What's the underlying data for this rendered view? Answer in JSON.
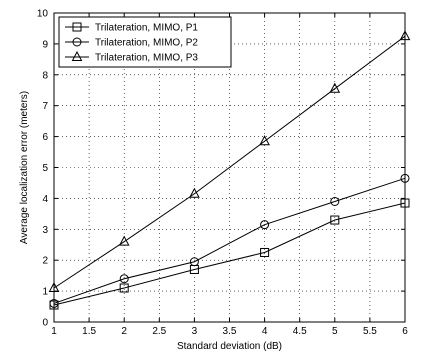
{
  "chart_data": {
    "type": "line",
    "xlabel": "Standard deviation (dB)",
    "ylabel": "Average localization error (meters)",
    "xlim": [
      1,
      6
    ],
    "ylim": [
      0,
      10
    ],
    "x_ticks": [
      "1",
      "1.5",
      "2",
      "2.5",
      "3",
      "3.5",
      "4",
      "4.5",
      "5",
      "5.5",
      "6"
    ],
    "y_ticks": [
      "0",
      "1",
      "2",
      "3",
      "4",
      "5",
      "6",
      "7",
      "8",
      "9",
      "10"
    ],
    "grid": true,
    "legend_position": "top-left",
    "x": [
      1,
      2,
      3,
      4,
      5,
      6
    ],
    "series": [
      {
        "name": "Trilateration, MIMO, P1",
        "marker": "square",
        "values": [
          0.55,
          1.1,
          1.7,
          2.25,
          3.3,
          3.85
        ]
      },
      {
        "name": "Trilateration, MIMO, P2",
        "marker": "circle",
        "values": [
          0.6,
          1.4,
          1.95,
          3.15,
          3.9,
          4.65
        ]
      },
      {
        "name": "Trilateration, MIMO, P3",
        "marker": "triangle",
        "values": [
          1.1,
          2.6,
          4.15,
          5.85,
          7.55,
          9.25
        ]
      }
    ]
  }
}
